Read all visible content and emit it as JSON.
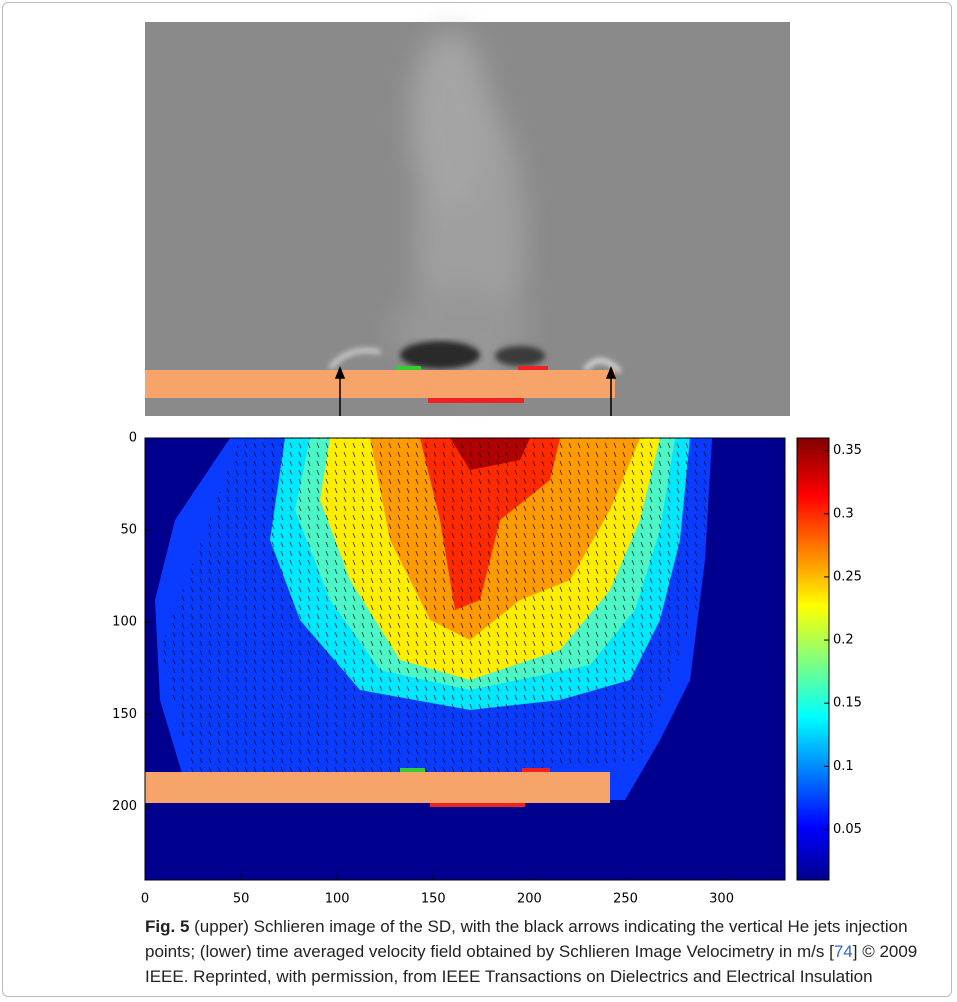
{
  "chart_data": {
    "type": "heatmap",
    "xlim": [
      0,
      333
    ],
    "xticks": [
      0,
      50,
      100,
      150,
      200,
      250,
      300
    ],
    "ylim": [
      0,
      240
    ],
    "yticks": [
      0,
      50,
      100,
      150,
      200
    ],
    "y_inverted": true,
    "colorbar": {
      "lim": [
        0.01,
        0.36
      ],
      "ticks": [
        0.05,
        0.1,
        0.15,
        0.2,
        0.25,
        0.3,
        0.35
      ],
      "colormap": "jet"
    }
  },
  "caption": {
    "label": "Fig. 5",
    "text_before": " (upper) Schlieren image of the SD, with the black arrows indicating the vertical He jets injection points; (lower) time averaged velocity field obtained by Schlieren Image Velocimetry in m/s [",
    "ref": "74",
    "text_after": "] © 2009 IEEE. Reprinted, with permission, from IEEE Transactions on Dielectrics and Electrical Insulation"
  }
}
